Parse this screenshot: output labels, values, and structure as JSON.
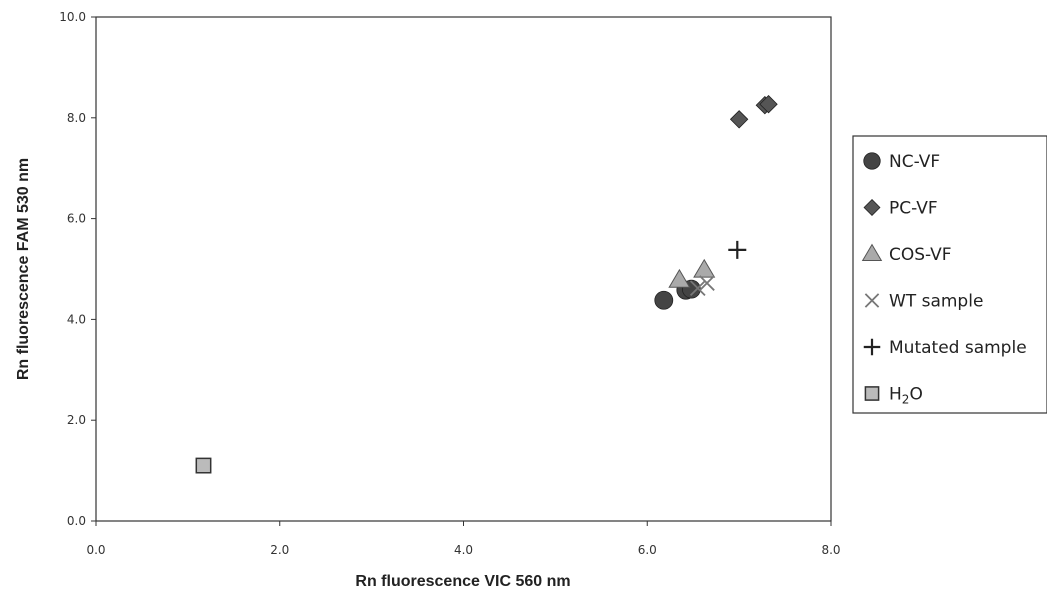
{
  "chart_data": {
    "type": "scatter",
    "xlabel": "Rn fluorescence VIC 560 nm",
    "ylabel": "Rn fluorescence FAM 530 nm",
    "xlim": [
      0,
      8
    ],
    "ylim": [
      0,
      10
    ],
    "xticks": [
      "0.0",
      "2.0",
      "4.0",
      "6.0",
      "8.0"
    ],
    "yticks": [
      "0.0",
      "2.0",
      "4.0",
      "6.0",
      "8.0",
      "10.0"
    ],
    "grid": false,
    "legend_position": "right",
    "series": [
      {
        "name": "NC-VF",
        "marker": "circle",
        "color": "#444444",
        "points": [
          [
            6.18,
            4.38
          ],
          [
            6.42,
            4.58
          ],
          [
            6.48,
            4.6
          ]
        ]
      },
      {
        "name": "PC-VF",
        "marker": "diamond",
        "color": "#555555",
        "points": [
          [
            7.0,
            7.97
          ],
          [
            7.28,
            8.25
          ],
          [
            7.32,
            8.27
          ]
        ]
      },
      {
        "name": "COS-VF",
        "marker": "triangle",
        "color": "#aaaaaa",
        "points": [
          [
            6.35,
            4.78
          ],
          [
            6.62,
            4.98
          ]
        ]
      },
      {
        "name": "WT sample",
        "marker": "x",
        "color": "#777777",
        "points": [
          [
            6.55,
            4.62
          ],
          [
            6.65,
            4.72
          ]
        ]
      },
      {
        "name": "Mutated sample",
        "marker": "plus",
        "color": "#222222",
        "points": [
          [
            6.98,
            5.38
          ]
        ]
      },
      {
        "name": "H2O",
        "marker": "square",
        "color": "#bbbbbb",
        "points": [
          [
            1.17,
            1.1
          ]
        ]
      }
    ]
  }
}
